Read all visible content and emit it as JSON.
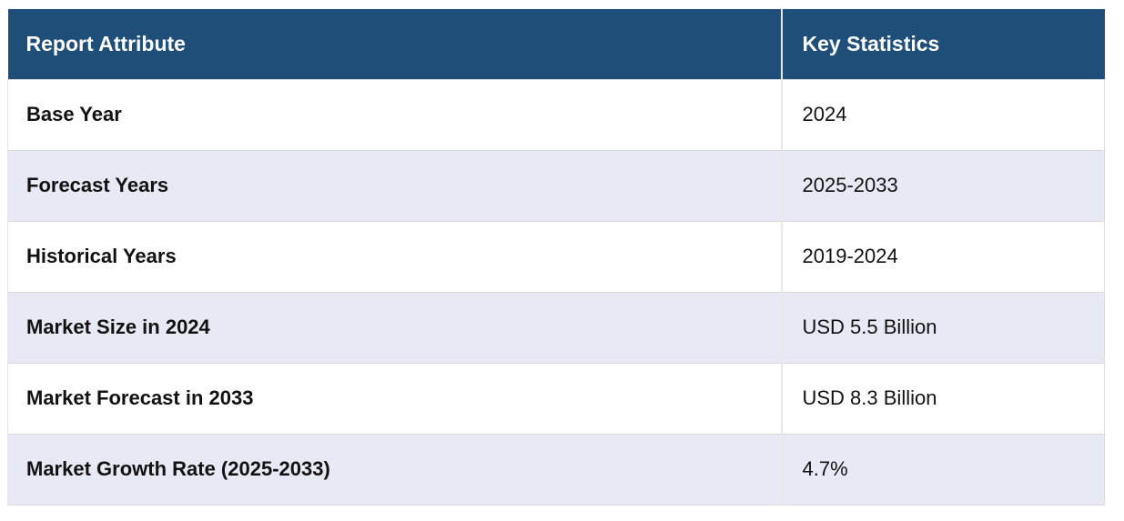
{
  "table": {
    "columns": [
      {
        "label": "Report Attribute"
      },
      {
        "label": "Key Statistics"
      }
    ],
    "rows": [
      {
        "attribute": "Base Year",
        "value": "2024"
      },
      {
        "attribute": "Forecast Years",
        "value": "2025-2033"
      },
      {
        "attribute": "Historical Years",
        "value": "2019-2024"
      },
      {
        "attribute": "Market Size in 2024",
        "value": "USD 5.5 Billion"
      },
      {
        "attribute": "Market Forecast in 2033",
        "value": "USD 8.3 Billion"
      },
      {
        "attribute": "Market Growth Rate (2025-2033)",
        "value": "4.7%"
      }
    ]
  },
  "colors": {
    "header_bg": "#1F4E79",
    "header_text": "#FFFFFF",
    "row_bg": "#FFFFFF",
    "row_alt_bg": "#E7E9F4",
    "border": "#D9D9D9",
    "column_divider": "#E9E9E9",
    "text": "#121212"
  }
}
